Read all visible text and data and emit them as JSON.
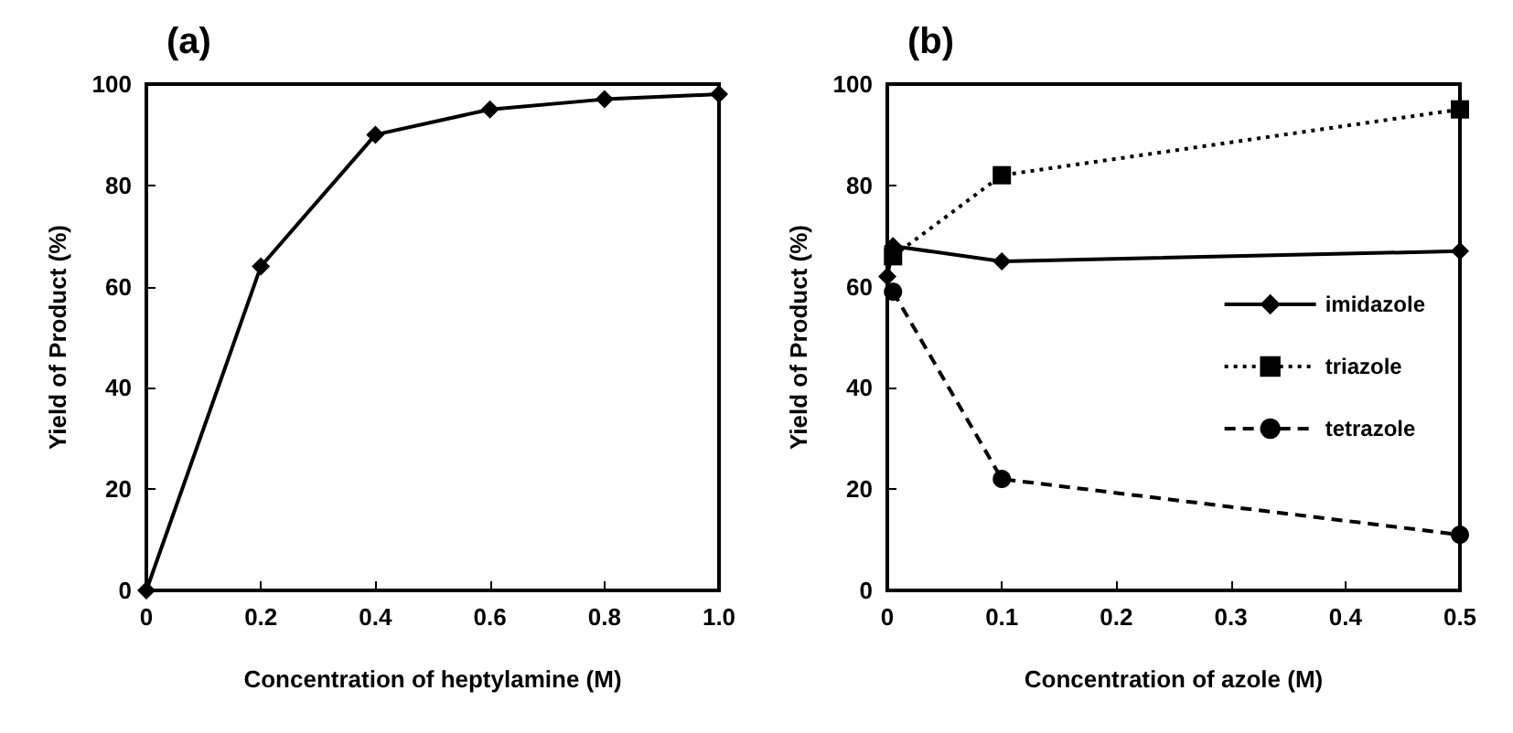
{
  "chart_data": [
    {
      "type": "line",
      "title": "(a)",
      "xlabel": "Concentration of heptylamine (M)",
      "ylabel": "Yield of Product (%)",
      "x": [
        0,
        0.2,
        0.4,
        0.6,
        0.8,
        1.0
      ],
      "series": [
        {
          "color": "#000000",
          "values": [
            0,
            64,
            90,
            95,
            97,
            98
          ],
          "marker": "diamond",
          "line_style": "solid"
        }
      ],
      "xlim": [
        0,
        1
      ],
      "xticks": [
        0,
        0.2,
        0.4,
        0.6,
        0.8,
        {
          "value": 1,
          "label": "1.0"
        }
      ],
      "ylim": [
        0,
        100
      ],
      "yticks": [
        0,
        20,
        40,
        60,
        80,
        100
      ],
      "grid": false,
      "legend": false
    },
    {
      "type": "line",
      "title": "(b)",
      "xlabel": "Concentration of azole (M)",
      "ylabel": "Yield of Product (%)",
      "x": [
        0,
        0.005,
        0.1,
        0.5
      ],
      "series": [
        {
          "name": "imidazole",
          "color": "#000000",
          "values": [
            62,
            68,
            65,
            67
          ],
          "marker": "diamond",
          "line_style": "solid"
        },
        {
          "name": "triazole",
          "color": "#000000",
          "values": [
            null,
            66,
            82,
            95
          ],
          "marker": "square",
          "line_style": "dotted"
        },
        {
          "name": "tetrazole",
          "color": "#000000",
          "values": [
            null,
            59,
            22,
            11
          ],
          "marker": "circle",
          "line_style": "dashed"
        }
      ],
      "xlim": [
        0,
        0.5
      ],
      "xticks": [
        0,
        0.1,
        0.2,
        0.3,
        0.4,
        0.5
      ],
      "ylim": [
        0,
        100
      ],
      "yticks": [
        0,
        20,
        40,
        60,
        80,
        100
      ],
      "grid": false,
      "legend": "right"
    }
  ]
}
